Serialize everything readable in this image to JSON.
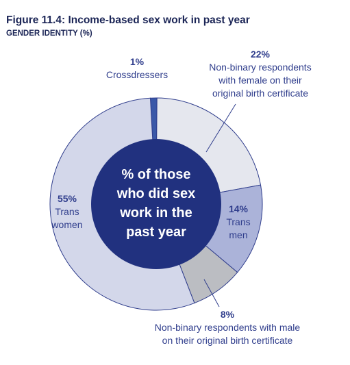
{
  "title": "Figure 11.4: Income-based sex work in past year",
  "subtitle": "GENDER IDENTITY (%)",
  "center_label": [
    "% of those",
    "who did sex",
    "work in the",
    "past year"
  ],
  "colors": {
    "title": "#1b2556",
    "label": "#2f3d8c",
    "center": "#21317f",
    "crossdressers": "#3a58a8",
    "nb_female": "#e5e7ee",
    "trans_men": "#abb3d9",
    "nb_male": "#bbbdc2",
    "trans_women": "#d3d7ea"
  },
  "chart_data": {
    "type": "pie",
    "title": "Figure 11.4: Income-based sex work in past year",
    "subtitle": "GENDER IDENTITY (%)",
    "center_label": "% of those who did sex work in the past year",
    "slices": [
      {
        "pct": "1%",
        "value": 1,
        "label": [
          "Crossdressers"
        ],
        "color": "#3a58a8"
      },
      {
        "pct": "22%",
        "value": 22,
        "label": [
          "Non-binary respondents",
          "with female on their",
          "original birth certificate"
        ],
        "color": "#e5e7ee"
      },
      {
        "pct": "14%",
        "value": 14,
        "label": [
          "Trans",
          "men"
        ],
        "color": "#abb3d9"
      },
      {
        "pct": "8%",
        "value": 8,
        "label": [
          "Non-binary respondents with male",
          "on their original birth certificate"
        ],
        "color": "#bbbdc2"
      },
      {
        "pct": "55%",
        "value": 55,
        "label": [
          "Trans",
          "women"
        ],
        "color": "#d3d7ea"
      }
    ]
  }
}
